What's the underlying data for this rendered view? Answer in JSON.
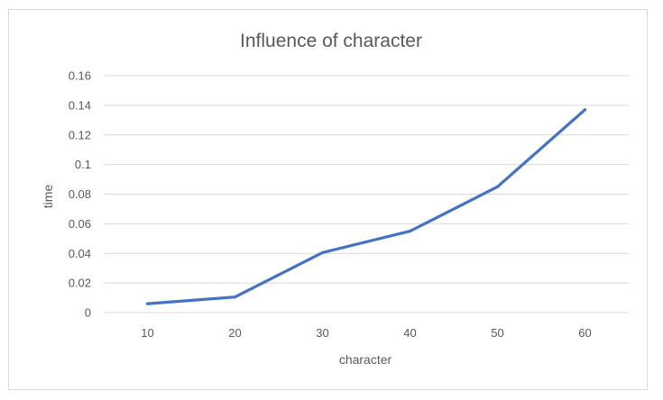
{
  "chart_data": {
    "type": "line",
    "title": "Influence of character",
    "xlabel": "character",
    "ylabel": "time",
    "categories": [
      "10",
      "20",
      "30",
      "40",
      "50",
      "60"
    ],
    "yticks": [
      "0",
      "0.02",
      "0.04",
      "0.06",
      "0.08",
      "0.1",
      "0.12",
      "0.14",
      "0.16"
    ],
    "ylim": [
      0,
      0.16
    ],
    "grid": true,
    "legend": "none",
    "series": [
      {
        "values": [
          0.006,
          0.0105,
          0.0405,
          0.055,
          0.085,
          0.137
        ],
        "color": "#4472c4"
      }
    ],
    "colors": {
      "line": "#4472c4",
      "grid": "#d9d9d9",
      "text": "#595959"
    }
  }
}
